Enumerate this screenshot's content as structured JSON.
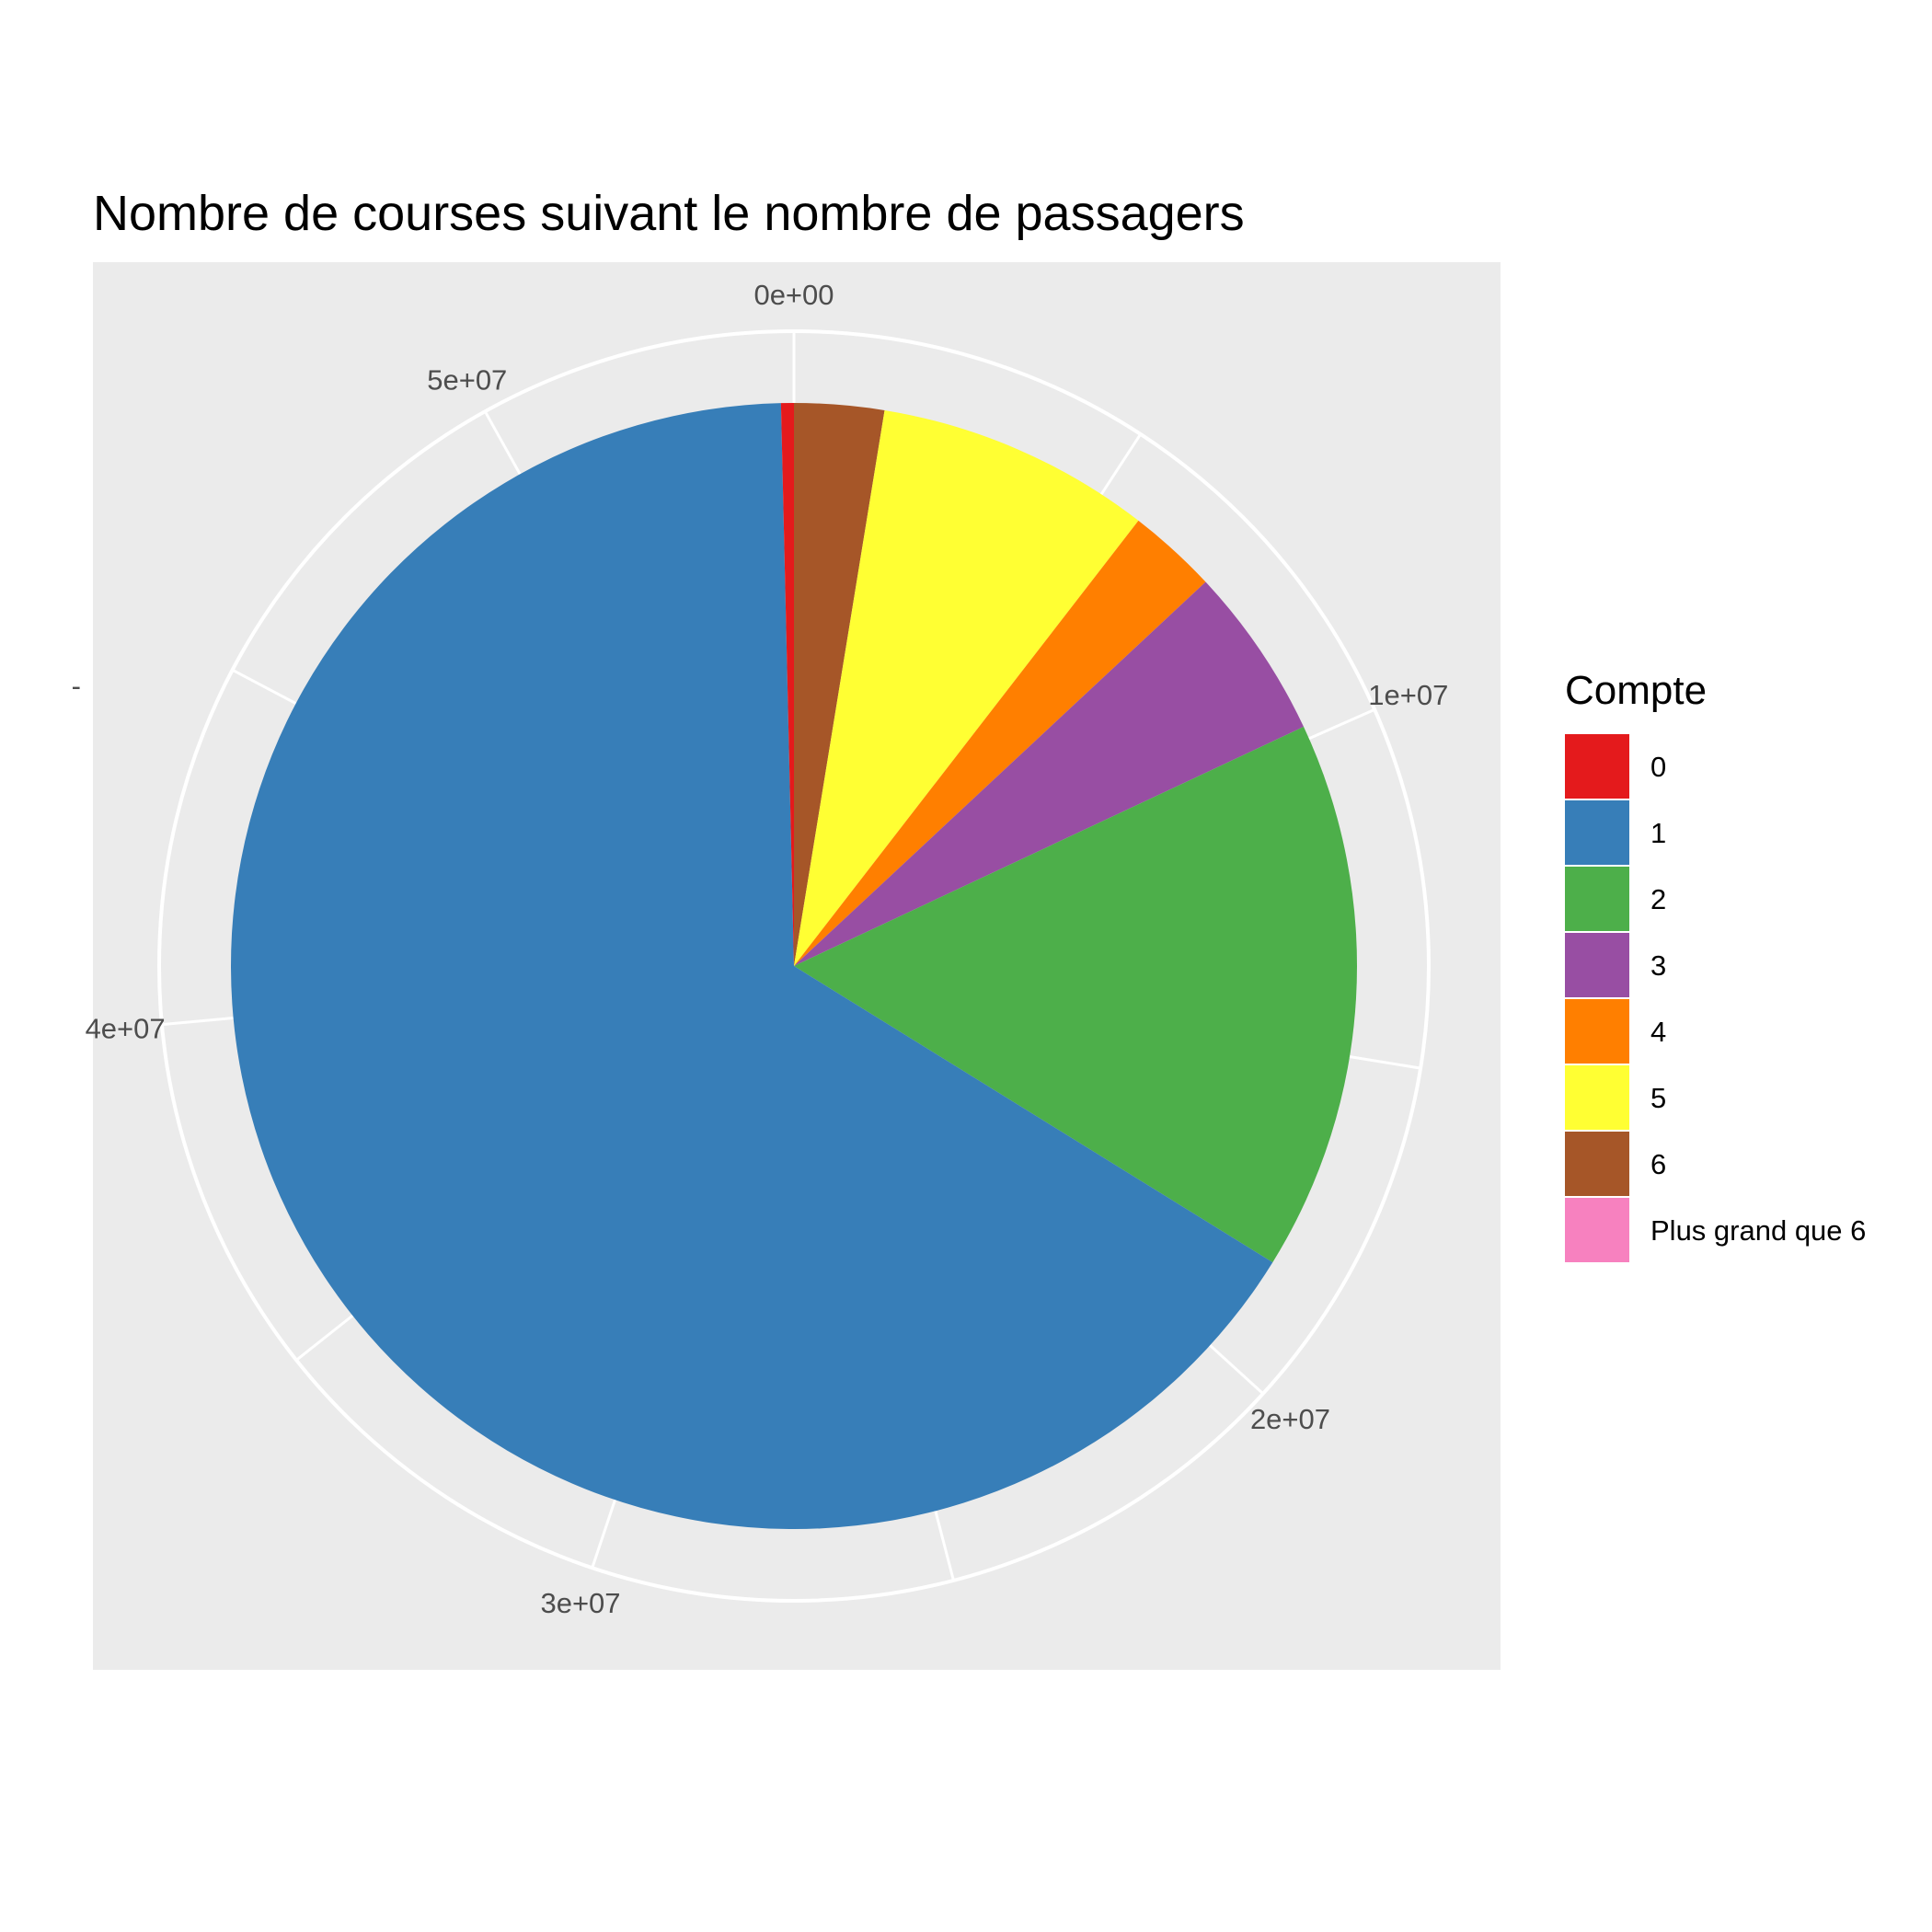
{
  "chart_data": {
    "type": "pie",
    "title": "Nombre de courses suivant le nombre de passagers",
    "axis_ticks": [
      {
        "value": 0,
        "label": "0e+00"
      },
      {
        "value": 10000000,
        "label": "1e+07"
      },
      {
        "value": 20000000,
        "label": "2e+07"
      },
      {
        "value": 30000000,
        "label": "3e+07"
      },
      {
        "value": 40000000,
        "label": "4e+07"
      },
      {
        "value": 50000000,
        "label": "5e+07"
      }
    ],
    "axis_total": 54400000,
    "legend": {
      "title": "Compte",
      "position": "right"
    },
    "slices": [
      {
        "label": "6",
        "value": 1400000,
        "color": "#A65628"
      },
      {
        "label": "5",
        "value": 4300000,
        "color": "#FFFF33"
      },
      {
        "label": "4",
        "value": 1400000,
        "color": "#FF7F00"
      },
      {
        "label": "3",
        "value": 2700000,
        "color": "#984EA3"
      },
      {
        "label": "2",
        "value": 8600000,
        "color": "#4DAF4A"
      },
      {
        "label": "1",
        "value": 35800000,
        "color": "#377EB8"
      },
      {
        "label": "0",
        "value": 200000,
        "color": "#E41A1C"
      },
      {
        "label": "Plus grand que 6",
        "value": 0,
        "color": "#F781BF"
      }
    ],
    "legend_order": [
      "0",
      "1",
      "2",
      "3",
      "4",
      "5",
      "6",
      "Plus grand que 6"
    ],
    "y_axis_tick": "-"
  }
}
